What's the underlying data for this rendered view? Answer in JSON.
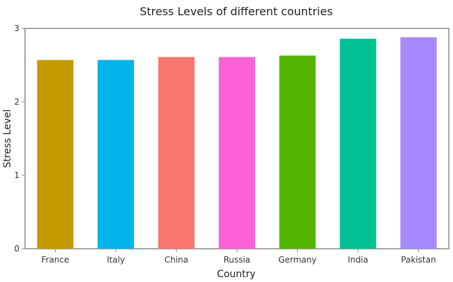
{
  "chart_data": {
    "type": "bar",
    "title": "Stress Levels of different countries",
    "xlabel": "Country",
    "ylabel": "Stress Level",
    "categories": [
      "France",
      "Italy",
      "China",
      "Russia",
      "Germany",
      "India",
      "Pakistan"
    ],
    "values": [
      2.57,
      2.57,
      2.61,
      2.61,
      2.63,
      2.86,
      2.88
    ],
    "colors": [
      "#c49a00",
      "#00b4eb",
      "#f8766d",
      "#fb61d7",
      "#53b400",
      "#00c094",
      "#a58aff"
    ],
    "ylim": [
      0,
      3
    ],
    "yticks": [
      0,
      1,
      2,
      3
    ],
    "grid": false,
    "legend": "none"
  }
}
